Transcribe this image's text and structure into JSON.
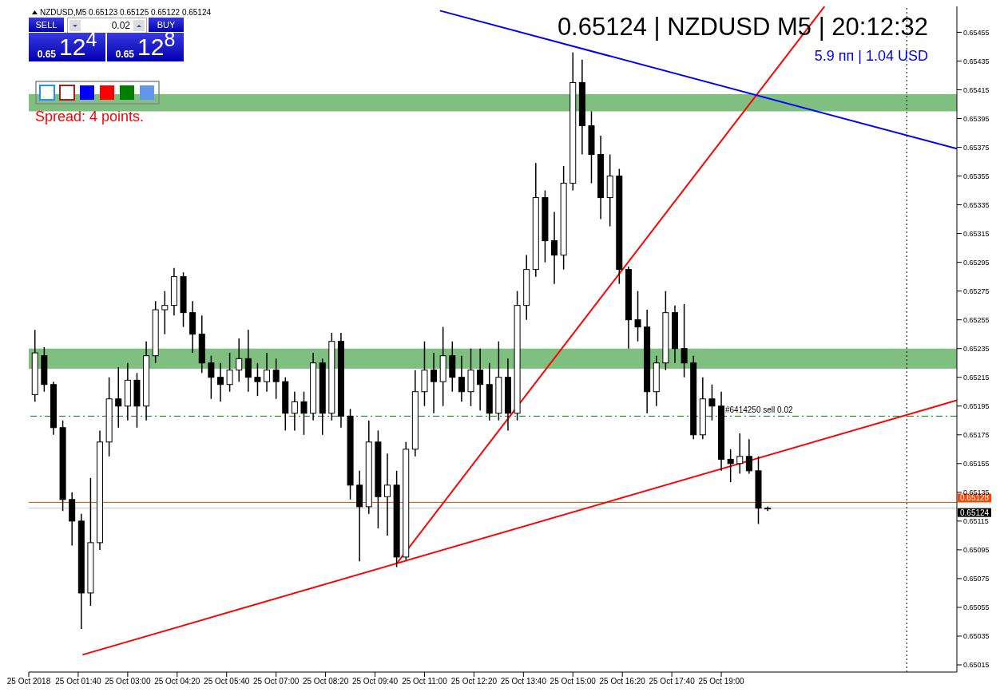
{
  "chart_data": {
    "type": "candlestick",
    "title": "0.65124 | NZDUSD M5 | 20:12:32",
    "subtitle": "5.9 пп | 1.04 USD",
    "annotations": [
      "NZDUSD,M5 0.65123 0.65125 0.65122 0.65124",
      "SELL",
      "BUY",
      "0.02",
      "0.65",
      "12$^{4}$",
      "0.65",
      "12$^{8}$",
      "Spread: 4 points."
    ],
    "x": [
      "2018-10-25T00:30",
      "2018-10-25T00:45",
      "2018-10-25T01:00",
      "2018-10-25T01:15",
      "2018-10-25T01:30",
      "2018-10-25T01:45",
      "2018-10-25T02:00",
      "2018-10-25T02:15",
      "2018-10-25T02:30",
      "2018-10-25T02:45",
      "2018-10-25T03:00",
      "2018-10-25T03:15",
      "2018-10-25T03:30",
      "2018-10-25T03:45",
      "2018-10-25T04:00",
      "2018-10-25T04:15",
      "2018-10-25T04:30",
      "2018-10-25T04:45",
      "2018-10-25T05:00",
      "2018-10-25T05:15",
      "2018-10-25T05:30",
      "2018-10-25T05:45",
      "2018-10-25T06:00",
      "2018-10-25T06:15",
      "2018-10-25T06:30",
      "2018-10-25T06:45",
      "2018-10-25T07:00",
      "2018-10-25T07:15",
      "2018-10-25T07:30",
      "2018-10-25T07:45",
      "2018-10-25T08:00",
      "2018-10-25T08:15",
      "2018-10-25T08:30",
      "2018-10-25T08:45",
      "2018-10-25T09:00",
      "2018-10-25T09:15",
      "2018-10-25T09:30",
      "2018-10-25T09:45",
      "2018-10-25T10:00",
      "2018-10-25T10:15",
      "2018-10-25T10:30",
      "2018-10-25T10:45",
      "2018-10-25T11:00",
      "2018-10-25T11:15",
      "2018-10-25T11:30",
      "2018-10-25T11:45",
      "2018-10-25T12:00",
      "2018-10-25T12:15",
      "2018-10-25T12:30",
      "2018-10-25T12:45",
      "2018-10-25T13:00",
      "2018-10-25T13:15",
      "2018-10-25T13:30",
      "2018-10-25T13:45",
      "2018-10-25T14:00",
      "2018-10-25T14:15",
      "2018-10-25T14:30",
      "2018-10-25T14:45",
      "2018-10-25T15:00",
      "2018-10-25T15:15",
      "2018-10-25T15:30",
      "2018-10-25T15:45",
      "2018-10-25T16:00",
      "2018-10-25T16:15",
      "2018-10-25T16:30",
      "2018-10-25T16:45",
      "2018-10-25T17:00",
      "2018-10-25T17:15",
      "2018-10-25T17:30",
      "2018-10-25T17:45",
      "2018-10-25T18:00",
      "2018-10-25T18:15",
      "2018-10-25T18:30",
      "2018-10-25T18:45",
      "2018-10-25T19:00",
      "2018-10-25T19:15",
      "2018-10-25T19:30",
      "2018-10-25T19:45",
      "2018-10-25T20:00",
      "2018-10-25T20:15"
    ],
    "ohlc": [
      [
        0.65203,
        0.65248,
        0.65198,
        0.65232
      ],
      [
        0.6523,
        0.65236,
        0.65205,
        0.6521
      ],
      [
        0.6521,
        0.65212,
        0.65175,
        0.6518
      ],
      [
        0.6518,
        0.65185,
        0.65122,
        0.6513
      ],
      [
        0.6513,
        0.65135,
        0.65098,
        0.65115
      ],
      [
        0.65115,
        0.6512,
        0.6504,
        0.65065
      ],
      [
        0.65065,
        0.65145,
        0.65056,
        0.651
      ],
      [
        0.651,
        0.65178,
        0.65095,
        0.6517
      ],
      [
        0.6517,
        0.65215,
        0.6516,
        0.652
      ],
      [
        0.652,
        0.65222,
        0.6518,
        0.65195
      ],
      [
        0.65195,
        0.65225,
        0.65185,
        0.65213
      ],
      [
        0.65213,
        0.65218,
        0.6518,
        0.65195
      ],
      [
        0.65195,
        0.6524,
        0.65185,
        0.6523
      ],
      [
        0.6523,
        0.65268,
        0.65225,
        0.65262
      ],
      [
        0.65262,
        0.65275,
        0.65245,
        0.65265
      ],
      [
        0.65265,
        0.65291,
        0.65258,
        0.65285
      ],
      [
        0.65285,
        0.65288,
        0.6525,
        0.6526
      ],
      [
        0.6526,
        0.65268,
        0.65232,
        0.65245
      ],
      [
        0.65245,
        0.65258,
        0.65218,
        0.65225
      ],
      [
        0.65225,
        0.6523,
        0.652,
        0.65215
      ],
      [
        0.65215,
        0.65225,
        0.65198,
        0.6521
      ],
      [
        0.6521,
        0.65232,
        0.65205,
        0.6522
      ],
      [
        0.6522,
        0.65242,
        0.65212,
        0.65228
      ],
      [
        0.65228,
        0.65248,
        0.65205,
        0.65215
      ],
      [
        0.65215,
        0.65225,
        0.65202,
        0.65212
      ],
      [
        0.65212,
        0.65232,
        0.65205,
        0.6522
      ],
      [
        0.6522,
        0.65228,
        0.652,
        0.65212
      ],
      [
        0.65212,
        0.65215,
        0.65178,
        0.6519
      ],
      [
        0.6519,
        0.65205,
        0.65178,
        0.65198
      ],
      [
        0.65198,
        0.65205,
        0.65175,
        0.6519
      ],
      [
        0.6519,
        0.65232,
        0.65185,
        0.65225
      ],
      [
        0.65225,
        0.65228,
        0.65175,
        0.6519
      ],
      [
        0.6519,
        0.65246,
        0.65185,
        0.6524
      ],
      [
        0.6524,
        0.65246,
        0.6518,
        0.65188
      ],
      [
        0.65188,
        0.65193,
        0.6513,
        0.6514
      ],
      [
        0.6514,
        0.6515,
        0.65087,
        0.65125
      ],
      [
        0.65125,
        0.65185,
        0.6512,
        0.6517
      ],
      [
        0.6517,
        0.65178,
        0.6511,
        0.65132
      ],
      [
        0.65132,
        0.65162,
        0.65105,
        0.6514
      ],
      [
        0.6514,
        0.6515,
        0.65083,
        0.6509
      ],
      [
        0.6509,
        0.6517,
        0.65088,
        0.65165
      ],
      [
        0.65165,
        0.6522,
        0.6516,
        0.65205
      ],
      [
        0.65205,
        0.6524,
        0.65195,
        0.6522
      ],
      [
        0.6522,
        0.65232,
        0.6519,
        0.65212
      ],
      [
        0.65212,
        0.6525,
        0.65195,
        0.6523
      ],
      [
        0.6523,
        0.6524,
        0.65205,
        0.65215
      ],
      [
        0.65215,
        0.6523,
        0.65198,
        0.65205
      ],
      [
        0.65205,
        0.65235,
        0.65195,
        0.6522
      ],
      [
        0.6522,
        0.65235,
        0.65192,
        0.6521
      ],
      [
        0.6521,
        0.65225,
        0.65185,
        0.6519
      ],
      [
        0.6519,
        0.6524,
        0.65185,
        0.65215
      ],
      [
        0.65215,
        0.65228,
        0.65178,
        0.6519
      ],
      [
        0.6519,
        0.65275,
        0.65185,
        0.65265
      ],
      [
        0.65265,
        0.653,
        0.65255,
        0.6529
      ],
      [
        0.6529,
        0.65364,
        0.65285,
        0.6534
      ],
      [
        0.6534,
        0.65345,
        0.65295,
        0.6531
      ],
      [
        0.6531,
        0.6533,
        0.6528,
        0.653
      ],
      [
        0.653,
        0.65362,
        0.6529,
        0.6535
      ],
      [
        0.6535,
        0.65441,
        0.65345,
        0.6542
      ],
      [
        0.6542,
        0.65436,
        0.6537,
        0.6539
      ],
      [
        0.6539,
        0.654,
        0.6535,
        0.6537
      ],
      [
        0.6537,
        0.65383,
        0.65325,
        0.6534
      ],
      [
        0.6534,
        0.6537,
        0.6532,
        0.65355
      ],
      [
        0.65355,
        0.6536,
        0.6528,
        0.6529
      ],
      [
        0.6529,
        0.65292,
        0.65235,
        0.65255
      ],
      [
        0.65255,
        0.65275,
        0.6524,
        0.6525
      ],
      [
        0.6525,
        0.65262,
        0.6519,
        0.65205
      ],
      [
        0.65205,
        0.6523,
        0.65195,
        0.65225
      ],
      [
        0.65225,
        0.65275,
        0.6522,
        0.6526
      ],
      [
        0.6526,
        0.65265,
        0.65225,
        0.65235
      ],
      [
        0.65235,
        0.65266,
        0.65215,
        0.65225
      ],
      [
        0.65225,
        0.6523,
        0.65172,
        0.65175
      ],
      [
        0.65175,
        0.65215,
        0.65172,
        0.652
      ],
      [
        0.652,
        0.6521,
        0.65185,
        0.65195
      ],
      [
        0.65195,
        0.65205,
        0.6515,
        0.65158
      ],
      [
        0.65158,
        0.65165,
        0.65142,
        0.65155
      ],
      [
        0.65155,
        0.65176,
        0.65148,
        0.6516
      ],
      [
        0.6516,
        0.65172,
        0.65148,
        0.6515
      ],
      [
        0.6515,
        0.6516,
        0.65113,
        0.65124
      ],
      [
        0.65124,
        0.65125,
        0.65122,
        0.65124
      ]
    ],
    "color": "#000000",
    "series": [
      {
        "type": "line",
        "color": "#ff0000",
        "x": [
          "2018-10-25T01:47",
          "2018-10-26T01:21"
        ],
        "values": [
          0.65022,
          0.65199
        ]
      },
      {
        "type": "line",
        "color": "#ff0000",
        "x": [
          "2018-10-25T10:16",
          "2018-10-25T21:47"
        ],
        "values": [
          0.65086,
          0.65473
        ]
      },
      {
        "type": "line",
        "color": "#0000ff",
        "x": [
          "2018-10-25T11:25",
          "2018-10-26T01:21"
        ],
        "values": [
          0.6547,
          0.65374
        ]
      }
    ],
    "xlim": [
      "2018-10-25T00:20",
      "2018-10-26T01:21"
    ],
    "ylim": [
      0.6501,
      0.65473
    ],
    "xticks": [
      {
        "value": "2018-10-25T00:20",
        "label": "25 Oct 2018"
      },
      {
        "value": "2018-10-25T01:40",
        "label": "25 Oct 01:40"
      },
      {
        "value": "2018-10-25T03:00",
        "label": "25 Oct 03:00"
      },
      {
        "value": "2018-10-25T04:20",
        "label": "25 Oct 04:20"
      },
      {
        "value": "2018-10-25T05:40",
        "label": "25 Oct 05:40"
      },
      {
        "value": "2018-10-25T07:00",
        "label": "25 Oct 07:00"
      },
      {
        "value": "2018-10-25T08:20",
        "label": "25 Oct 08:20"
      },
      {
        "value": "2018-10-25T09:40",
        "label": "25 Oct 09:40"
      },
      {
        "value": "2018-10-25T11:00",
        "label": "25 Oct 11:00"
      },
      {
        "value": "2018-10-25T12:20",
        "label": "25 Oct 12:20"
      },
      {
        "value": "2018-10-25T13:40",
        "label": "25 Oct 13:40"
      },
      {
        "value": "2018-10-25T15:00",
        "label": "25 Oct 15:00"
      },
      {
        "value": "2018-10-25T16:20",
        "label": "25 Oct 16:20"
      },
      {
        "value": "2018-10-25T17:40",
        "label": "25 Oct 17:40"
      },
      {
        "value": "2018-10-25T19:00",
        "label": "25 Oct 19:00"
      }
    ],
    "yticks": [
      0.65015,
      0.65035,
      0.65055,
      0.65075,
      0.65095,
      0.65115,
      0.65135,
      0.65155,
      0.65175,
      0.65195,
      0.65215,
      0.65235,
      0.65255,
      0.65275,
      0.65295,
      0.65315,
      0.65335,
      0.65355,
      0.65375,
      0.65395,
      0.65415,
      0.65435,
      0.65455
    ],
    "ref_lines": [
      {
        "axis": "y",
        "value": 0.65188,
        "label": "#6414250 sell 0.02",
        "color": "#008000",
        "line_style": "dashed"
      },
      {
        "axis": "y",
        "value": 0.65128,
        "label": "0.65128",
        "color": "#ff4500",
        "line_style": "solid"
      },
      {
        "axis": "y",
        "value": 0.65124,
        "label": "0.65124",
        "color": "#c0c0c0",
        "line_style": "solid"
      },
      {
        "axis": "x",
        "value": "2018-10-26T00:00",
        "color": "#000000",
        "line_style": "dotted"
      }
    ],
    "bands": [
      {
        "axis": "y",
        "from": 0.654,
        "to": 0.65412,
        "color": "#008000"
      },
      {
        "axis": "y",
        "from": 0.65221,
        "to": 0.65235,
        "color": "#008000"
      }
    ],
    "grid": false
  }
}
